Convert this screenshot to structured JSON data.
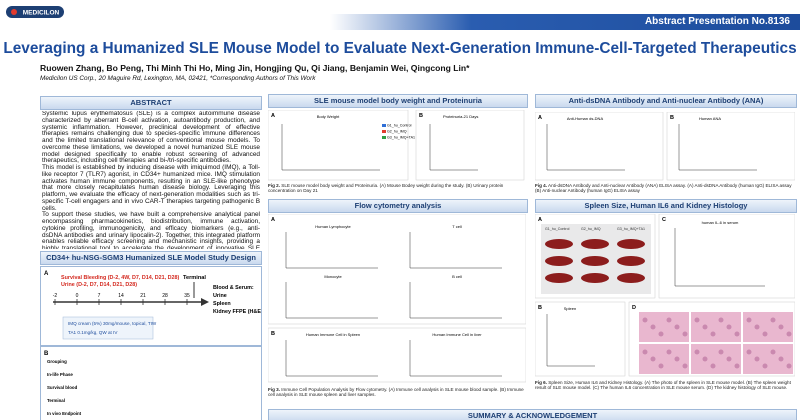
{
  "header": {
    "logo": "MEDICILON",
    "abstract_no": "Abstract Presentation No.8136",
    "title": "Leveraging a Humanized SLE Mouse Model to Evaluate Next-Generation Immune-Cell-Targeted Therapeutics",
    "authors": "Ruowen Zhang, Bo Peng, Thi Minh Thi Ho, Ming Jin, Hongjing Qu, Qi Jiang,  Benjamin Wei, Qingcong Lin*",
    "affiliation": "Medicilon US Corp., 20 Maguire Rd, Lexington, MA, 02421,  *Corresponding Authors of This Work"
  },
  "abstract": {
    "heading": "ABSTRACT",
    "paragraphs": [
      "Systemic lupus erythematosus (SLE) is a complex autoimmune disease characterized by aberrant B-cell activation, autoantibody production, and systemic inflammation. However, preclinical development of effective therapies remains challenging due to species-specific immune differences and the limited translational relevance of conventional mouse models. To overcome these limitations, we developed a novel humanized SLE mouse model designed specifically to enable robust screening of advanced therapeutics, including cell therapies and bi-/tri-specific antibodies.",
      "This model is established by inducing disease with imiquimod (IMQ), a Toll-like receptor 7 (TLR7) agonist, in CD34+ humanized mice. IMQ stimulation activates human immune components, resulting in an SLE-like phenotype that more closely recapitulates human disease biology. Leveraging this platform, we evaluate the efficacy of next-generation modalities such as tri-specific T-cell engagers and in vivo CAR-T therapies targeting pathogenic B cells.",
      "To support these studies, we have built a comprehensive analytical panel encompassing pharmacokinetics, biodistribution, immune activation, cytokine profiling, immunogenicity, and efficacy biomarkers (e.g., anti-dsDNA antibodies and urinary lipocalin-2). Together, this integrated platform enables reliable efficacy screening and mechanistic insights, providing a highly translational tool to accelerate the development of innovative SLE therapies"
    ]
  },
  "study_design": {
    "heading": "CD34+ hu-NSG-SGM3 Humanized SLE Model Study Design",
    "panel": "A",
    "bleeding": "Survival Bleeding (D-2, 4W, D7, D14, D21, D28)",
    "urine": "Urine (D-2, D7, D14, D21, D28)",
    "days": [
      "-2",
      "0",
      "7",
      "14",
      "21",
      "28",
      "35"
    ],
    "terminal": "Terminal",
    "samples": [
      "Blood & Serum:",
      "Urine",
      "Spleen",
      "Kidney FFPE (H&E)"
    ],
    "treatments": [
      "IMQ cream (5%) 30mg/mouse, topical, TIW",
      "TA1 0.1mg/kg, QW at IV"
    ],
    "panel_b": "B",
    "groups": [
      "Grouping",
      "In-life Phase",
      "Survival blood",
      "Terminal",
      "In vivo Endpoint"
    ]
  },
  "body_weight": {
    "heading": "SLE mouse model body weight and Proteinuria",
    "panel_a": "A",
    "panel_a_title": "Body Weight",
    "panel_b": "B",
    "panel_b_title": "Proteinuria-21 Days",
    "legend": [
      "G1_hu_Control",
      "G2_hu_IMQ",
      "G3_hu_IMQ+TA1"
    ],
    "caption_label": "Fig 2.",
    "caption": "SLE mouse model body weight and Proteinuria. (A) Mouse Bodey weight during the study. (B) Urinary protein concentration on Day 21"
  },
  "flow": {
    "heading": "Flow cytometry analysis",
    "panel_a": "A",
    "panel_a_titles": [
      "Human Lymphocyte",
      "T cell",
      "Monocyte",
      "B cell"
    ],
    "panel_b": "B",
    "panel_b_titles": [
      "Human Immune Cell in Spleen",
      "Human Immune Cell in liver"
    ],
    "caption_label": "Fig 3.",
    "caption": "Immune Cell Population Analysis by Flow cytometry. (A) Immune cell analysis in SLE mouse blood sample. (B) Immune cell analysis in SLE mouse spleen and liver samples."
  },
  "ana": {
    "heading": "Anti-dsDNA Antibody and Anti-nuclear Antibody (ANA)",
    "panel_a": "A",
    "panel_a_title": "Anti-Human ds-DNA",
    "panel_b": "B",
    "panel_b_title": "Human ANA",
    "caption_label": "Fig 4.",
    "caption": "Anti-dsDNA Antibody and Anti-nuclear Antibody (ANA) ELISA assay. (A) Anti-dsDNA Antibody (human IgG) ELISA assay (B) Anti-nuclear Antibody (human IgG) ELISA assay"
  },
  "spleen": {
    "heading": "Spleen Size, Human IL6 and Kidney Histology",
    "panel_a": "A",
    "photo_labels": [
      "G1_hu_Control",
      "G2_hu_IMQ",
      "G3_hu_IMQ+TA1"
    ],
    "panel_c": "C",
    "panel_c_title": "human IL-6 in serum",
    "panel_b": "B",
    "panel_b_title": "Spleen",
    "panel_d": "D",
    "caption_label": "Fig 6.",
    "caption": "Spleen Size, Human IL6 and Kidney Histology. (A) The photo of the spleen in SLE mouse model. (B) The spleen weight result of SLE mouse model. (C) The human IL6 concentration in SLE mouse serum. (D) The kidney histology of SLE mouse."
  },
  "summary": {
    "heading": "SUMMARY & ACKNOWLEDGEMENT"
  }
}
